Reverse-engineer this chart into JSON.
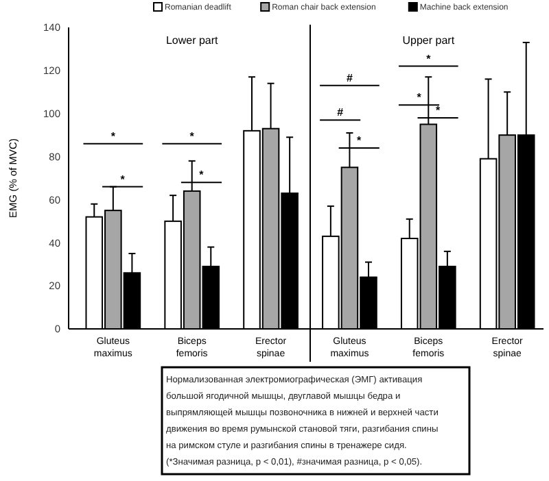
{
  "chart_data": {
    "type": "bar",
    "ylabel": "EMG (% of MVC)",
    "categories": [
      "Gluteus maximus",
      "Biceps femoris",
      "Erector spinae",
      "Gluteus maximus",
      "Biceps femoris",
      "Erector spinae"
    ],
    "series": [
      {
        "name": "Romanian deadlift",
        "color": "#ffffff",
        "values": [
          52,
          50,
          92,
          43,
          42,
          79
        ],
        "errors": [
          [
            52,
            58
          ],
          [
            50,
            62
          ],
          [
            92,
            117
          ],
          [
            43,
            57
          ],
          [
            42,
            51
          ],
          [
            79,
            116
          ]
        ]
      },
      {
        "name": "Roman chair back extension",
        "color": "#a6a6a6",
        "values": [
          55,
          64,
          93,
          75,
          95,
          90
        ],
        "errors": [
          [
            55,
            66
          ],
          [
            64,
            78
          ],
          [
            93,
            114
          ],
          [
            75,
            91
          ],
          [
            95,
            117
          ],
          [
            90,
            110
          ]
        ]
      },
      {
        "name": "Machine back extension",
        "color": "#000000",
        "values": [
          26,
          29,
          63,
          24,
          29,
          90
        ],
        "errors": [
          [
            26,
            35
          ],
          [
            29,
            38
          ],
          [
            63,
            89
          ],
          [
            24,
            31
          ],
          [
            29,
            36
          ],
          [
            90,
            133
          ]
        ]
      }
    ],
    "ylim": [
      0,
      140
    ],
    "yticks": [
      0,
      20,
      40,
      60,
      80,
      100,
      120,
      140
    ],
    "grid": false,
    "legend": "top",
    "annotations": [
      "Lower part",
      "Upper part",
      "*",
      "*",
      "*",
      "*",
      "#",
      "#",
      "*",
      "*",
      "*",
      "*",
      "Нормализованная электромиографическая (ЭМГ) активация большой ягодичной мышцы, двуглавой мышцы бедра и выпрямляющей мышцы позвоночника в нижней и верхней части движения во время румынской становой тяги, разгибания спины на римском стуле и разгибания спины в тренажере сидя. (*Значимая разница, р < 0,01), #значимая разница, р < 0,05)."
    ]
  }
}
